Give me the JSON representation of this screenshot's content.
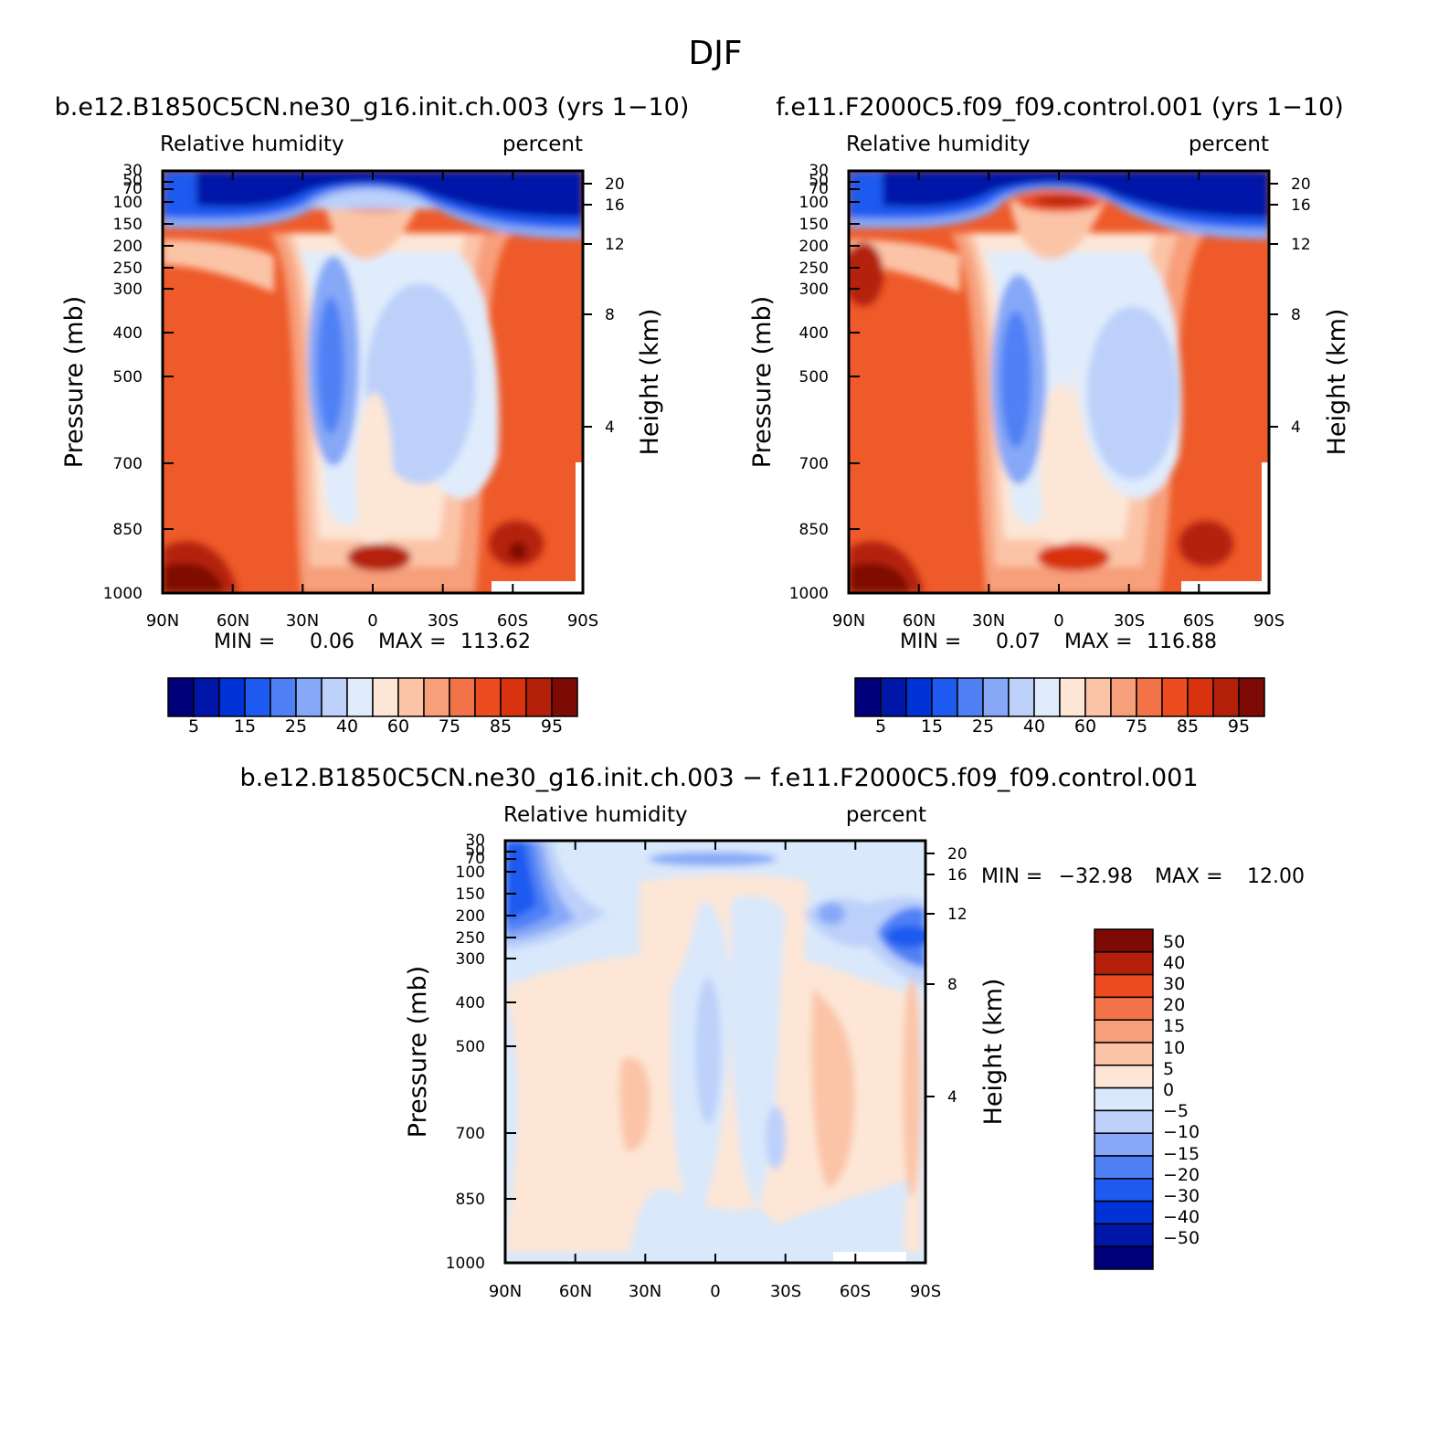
{
  "figure_title": "DJF",
  "palette_rh": [
    "#00007a",
    "#0016a8",
    "#0033d6",
    "#1f5af0",
    "#4f81f5",
    "#86a8f7",
    "#bcd0fa",
    "#e0ecfb",
    "#fde6d6",
    "#fbc4a7",
    "#f79f7a",
    "#f27347",
    "#ec4c20",
    "#d8330e",
    "#b4200a",
    "#7e0a06"
  ],
  "palette_diff": [
    "#00007a",
    "#0016a8",
    "#0033d6",
    "#1f5af0",
    "#4f81f5",
    "#86a8f7",
    "#bcd0fa",
    "#d9e8fb",
    "#fde6d6",
    "#fbc4a7",
    "#f79f7a",
    "#f27347",
    "#ec4c20",
    "#b4200a",
    "#7e0a06"
  ],
  "chart_data": [
    {
      "type": "heatmap",
      "title": "b.e12.B1850C5CN.ne30_g16.init.ch.003 (yrs 1−10)",
      "left_subtitle": "Relative humidity",
      "right_subtitle": "percent",
      "xlabel": "",
      "ylabel": "Pressure (mb)",
      "ylabel_right": "Height (km)",
      "x_ticks": [
        "90N",
        "60N",
        "30N",
        "0",
        "30S",
        "60S",
        "90S"
      ],
      "y_ticks": [
        30,
        50,
        70,
        100,
        150,
        200,
        250,
        300,
        400,
        500,
        700,
        850,
        1000
      ],
      "y_ticks_right": [
        20,
        16,
        12,
        8,
        4
      ],
      "min_label": "MIN =",
      "min_value": "0.06",
      "max_label": "MAX =",
      "max_value": "113.62",
      "colorbar_labels": [
        "5",
        "15",
        "25",
        "40",
        "60",
        "75",
        "85",
        "95"
      ]
    },
    {
      "type": "heatmap",
      "title": "f.e11.F2000C5.f09_f09.control.001 (yrs 1−10)",
      "left_subtitle": "Relative humidity",
      "right_subtitle": "percent",
      "xlabel": "",
      "ylabel": "Pressure (mb)",
      "ylabel_right": "Height (km)",
      "x_ticks": [
        "90N",
        "60N",
        "30N",
        "0",
        "30S",
        "60S",
        "90S"
      ],
      "y_ticks": [
        30,
        50,
        70,
        100,
        150,
        200,
        250,
        300,
        400,
        500,
        700,
        850,
        1000
      ],
      "y_ticks_right": [
        20,
        16,
        12,
        8,
        4
      ],
      "min_label": "MIN =",
      "min_value": "0.07",
      "max_label": "MAX =",
      "max_value": "116.88",
      "colorbar_labels": [
        "5",
        "15",
        "25",
        "40",
        "60",
        "75",
        "85",
        "95"
      ]
    },
    {
      "type": "heatmap",
      "title": "b.e12.B1850C5CN.ne30_g16.init.ch.003 − f.e11.F2000C5.f09_f09.control.001",
      "left_subtitle": "Relative humidity",
      "right_subtitle": "percent",
      "xlabel": "",
      "ylabel": "Pressure (mb)",
      "ylabel_right": "Height (km)",
      "x_ticks": [
        "90N",
        "60N",
        "30N",
        "0",
        "30S",
        "60S",
        "90S"
      ],
      "y_ticks": [
        30,
        50,
        70,
        100,
        150,
        200,
        250,
        300,
        400,
        500,
        700,
        850,
        1000
      ],
      "y_ticks_right": [
        20,
        16,
        12,
        8,
        4
      ],
      "min_label": "MIN =",
      "min_value": "−32.98",
      "max_label": "MAX =",
      "max_value": "12.00",
      "colorbar_labels": [
        "50",
        "40",
        "30",
        "20",
        "15",
        "10",
        "5",
        "0",
        "−5",
        "−10",
        "−15",
        "−20",
        "−30",
        "−40",
        "−50"
      ]
    }
  ]
}
